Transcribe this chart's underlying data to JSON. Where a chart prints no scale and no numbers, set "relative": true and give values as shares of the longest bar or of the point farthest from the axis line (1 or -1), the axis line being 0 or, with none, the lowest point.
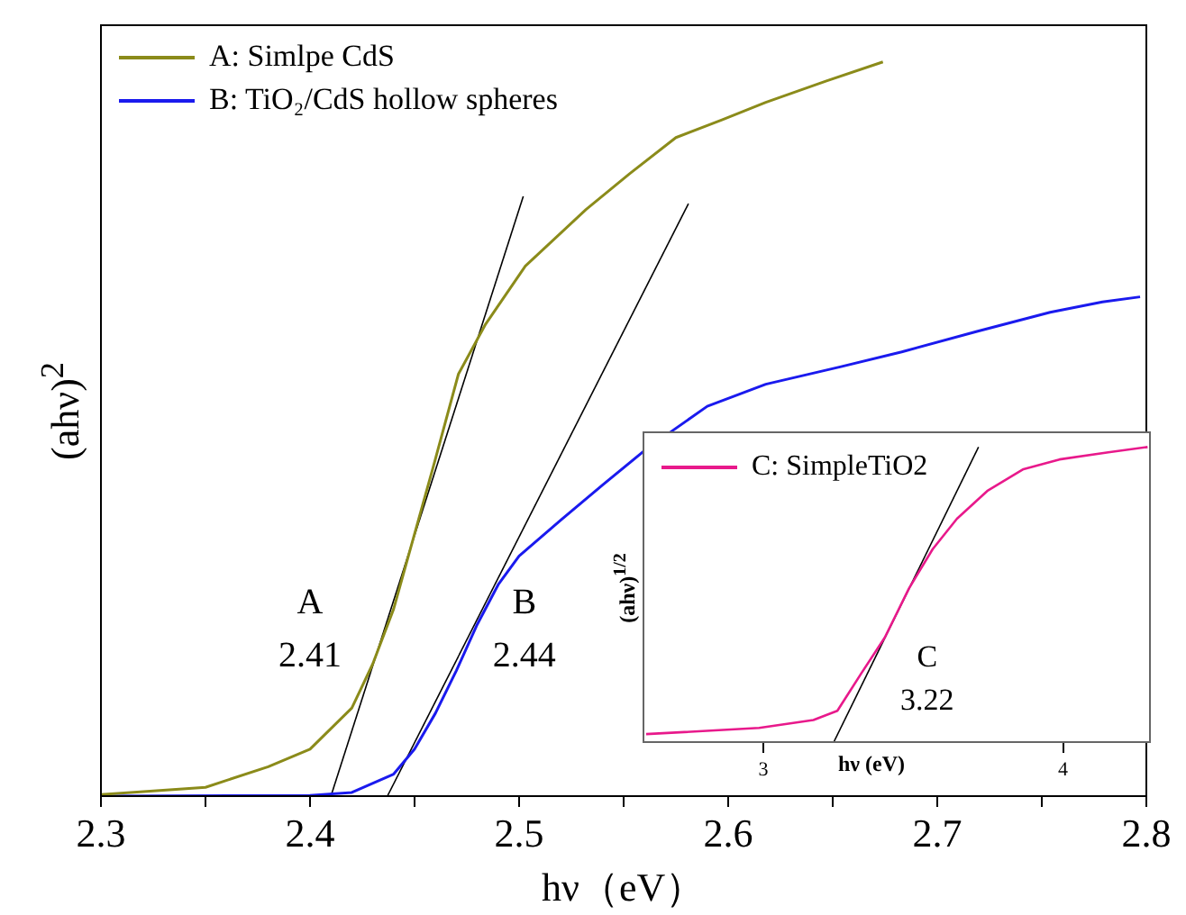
{
  "chart_data": [
    {
      "type": "line",
      "xlabel": "hν（eV）",
      "ylabel": "(ahν)$^{2}$",
      "xlim": [
        2.3,
        2.8
      ],
      "xticks": [
        2.3,
        {
          "value": 2.35,
          "label": null
        },
        2.4,
        {
          "value": 2.45,
          "label": null
        },
        2.5,
        {
          "value": 2.55,
          "label": null
        },
        2.6,
        {
          "value": 2.65,
          "label": null
        },
        2.7,
        {
          "value": 2.75,
          "label": null
        },
        2.8
      ],
      "relative": true,
      "legend": "top left",
      "series": [
        {
          "name": "A: Simlpe CdS",
          "color": "#8b8b1a",
          "x": [
            2.3,
            2.35,
            2.38,
            2.4,
            2.42,
            2.43,
            2.44,
            2.459,
            2.471,
            2.484,
            2.503,
            2.532,
            2.553,
            2.575,
            2.597,
            2.618,
            2.647,
            2.674
          ],
          "values": [
            0.002,
            0.012,
            0.04,
            0.064,
            0.12,
            0.18,
            0.255,
            0.449,
            0.575,
            0.643,
            0.722,
            0.799,
            0.848,
            0.897,
            0.921,
            0.945,
            0.974,
            1
          ]
        },
        {
          "name": "B: TiO₂/CdS hollow spheres",
          "color": "#1a1aee",
          "x": [
            2.3,
            2.4,
            2.42,
            2.44,
            2.45,
            2.46,
            2.47,
            2.48,
            2.49,
            2.5,
            2.52,
            2.54,
            2.561,
            2.59,
            2.618,
            2.654,
            2.683,
            2.719,
            2.754,
            2.779,
            2.797
          ],
          "values": [
            0,
            0.001,
            0.005,
            0.03,
            0.064,
            0.113,
            0.171,
            0.234,
            0.288,
            0.327,
            0.376,
            0.424,
            0.473,
            0.531,
            0.561,
            0.585,
            0.605,
            0.633,
            0.659,
            0.673,
            0.68
          ]
        },
        {
          "type": "line",
          "color": "#000000",
          "x": [
            2.41,
            2.502
          ],
          "values": [
            0,
            0.817
          ]
        },
        {
          "type": "line",
          "color": "#000000",
          "x": [
            2.437,
            2.581
          ],
          "values": [
            0,
            0.807
          ]
        }
      ],
      "annotations": [
        "A",
        "2.41",
        "B",
        "2.44"
      ]
    },
    {
      "type": "line",
      "xlabel": "hν (eV)",
      "ylabel": "(ahν)$^{1/2}$",
      "xlim": [
        2.6,
        4.29
      ],
      "xticks": [
        3,
        4
      ],
      "relative": true,
      "legend": "top left",
      "series": [
        {
          "name": "C: SimpleTiO2",
          "color": "#e8198b",
          "x": [
            2.609,
            2.986,
            3.167,
            3.247,
            3.325,
            3.405,
            3.486,
            3.565,
            3.646,
            3.747,
            3.868,
            3.988,
            4.151,
            4.282
          ],
          "values": [
            0.027,
            0.048,
            0.075,
            0.106,
            0.23,
            0.354,
            0.521,
            0.654,
            0.757,
            0.851,
            0.925,
            0.958,
            0.982,
            1
          ]
        },
        {
          "type": "line",
          "color": "#000000",
          "x": [
            3.235,
            3.718
          ],
          "values": [
            0,
            1
          ]
        }
      ],
      "annotations": [
        "C",
        "3.22"
      ]
    }
  ]
}
